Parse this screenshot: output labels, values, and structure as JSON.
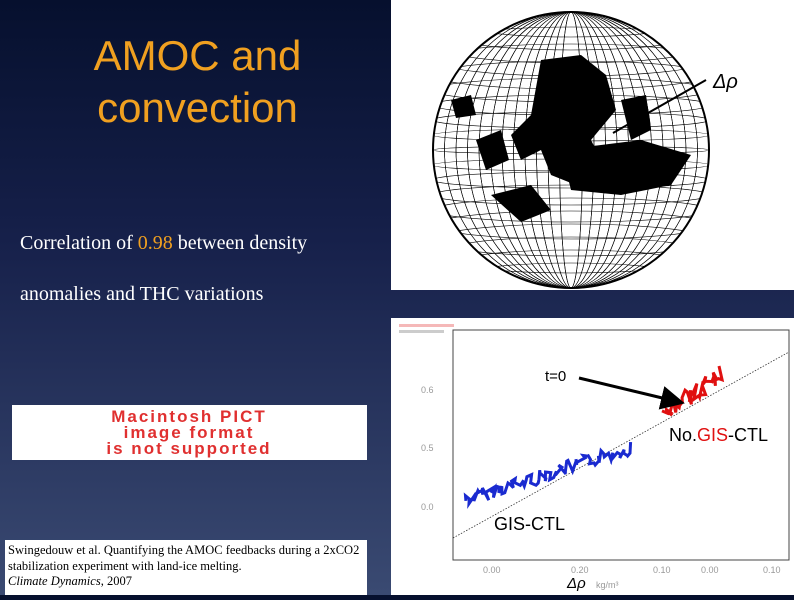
{
  "slide": {
    "title_line1": "AMOC and",
    "title_line2": "convection",
    "body_part1": "Correlation of ",
    "body_value": "0.98",
    "body_part2": " between density",
    "body_line2": "anomalies and THC variations",
    "colors": {
      "title": "#f0a020",
      "highlight": "#f0a020",
      "background_top": "#06102e",
      "background_bottom": "#3a4a72"
    }
  },
  "globe": {
    "label": "Δρ"
  },
  "placeholder": {
    "line1": "Macintosh PICT",
    "line2": "image format",
    "line3": "is not supported",
    "color": "#e03030"
  },
  "chart": {
    "annotation_t0": "t=0",
    "label_nogis_prefix": "No.",
    "label_nogis_gis": "GIS",
    "label_nogis_suffix": "-CTL",
    "label_gisctl": "GIS-CTL",
    "xlabel": "Δρ",
    "ylabel": "",
    "colors": {
      "nogis": "#e01010",
      "gisctl": "#1a2ad0",
      "gis_word": "#e01010"
    }
  },
  "citation": {
    "text": "Swingedouw et al. Quantifying the AMOC feedbacks during a 2xCO2 stabilization experiment with land-ice melting.",
    "journal": "Climate Dynamics",
    "year": ", 2007"
  }
}
